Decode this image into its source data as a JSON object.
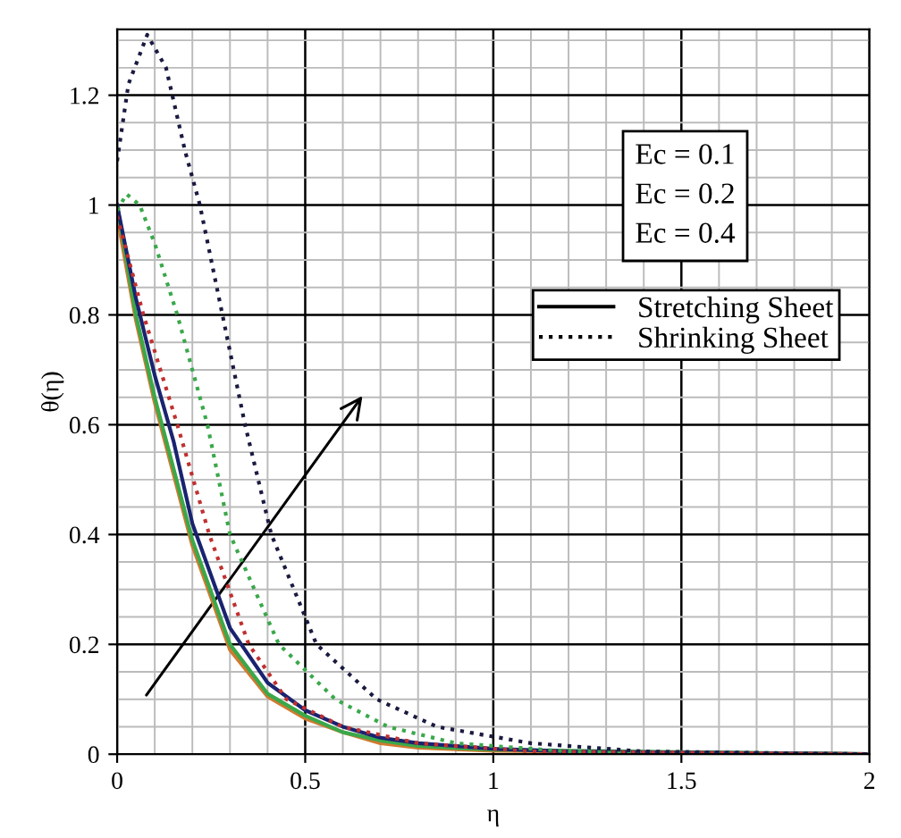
{
  "chart_data": {
    "type": "line",
    "xlabel": "η",
    "ylabel": "θ(η)",
    "xlim": [
      0,
      2
    ],
    "ylim": [
      0,
      1.32
    ],
    "xticks": [
      0,
      0.5,
      1,
      1.5,
      2
    ],
    "yticks": [
      0,
      0.2,
      0.4,
      0.6,
      0.8,
      1,
      1.2
    ],
    "grid": true,
    "series": [
      {
        "color": "#d07a30",
        "line_style": "solid",
        "x": [
          0,
          0.05,
          0.1,
          0.15,
          0.2,
          0.3,
          0.4,
          0.5,
          0.6,
          0.7,
          0.8,
          1,
          2
        ],
        "values": [
          0.98,
          0.79,
          0.64,
          0.51,
          0.38,
          0.19,
          0.105,
          0.065,
          0.04,
          0.02,
          0.012,
          0.006,
          0
        ]
      },
      {
        "color": "#3aa84a",
        "line_style": "solid",
        "x": [
          0,
          0.05,
          0.1,
          0.15,
          0.2,
          0.3,
          0.4,
          0.5,
          0.6,
          0.7,
          0.8,
          1,
          2
        ],
        "values": [
          1,
          0.8,
          0.65,
          0.52,
          0.39,
          0.2,
          0.11,
          0.07,
          0.04,
          0.025,
          0.015,
          0.008,
          0
        ]
      },
      {
        "color": "#1a2370",
        "line_style": "solid",
        "x": [
          0,
          0.05,
          0.1,
          0.15,
          0.2,
          0.3,
          0.4,
          0.5,
          0.6,
          0.7,
          0.8,
          1,
          1.2,
          2
        ],
        "values": [
          1,
          0.83,
          0.69,
          0.57,
          0.42,
          0.23,
          0.13,
          0.08,
          0.05,
          0.03,
          0.02,
          0.01,
          0.005,
          0
        ]
      },
      {
        "color": "#c03030",
        "line_style": "dotted",
        "x": [
          0,
          0.07,
          0.16,
          0.245,
          0.35,
          0.45,
          0.6,
          0.8,
          1.1,
          2
        ],
        "values": [
          0.98,
          0.8,
          0.6,
          0.4,
          0.2,
          0.1,
          0.05,
          0.02,
          0.005,
          0
        ]
      },
      {
        "color": "#3aa84a",
        "line_style": "dotted",
        "x": [
          0,
          0.025,
          0.06,
          0.1,
          0.16,
          0.24,
          0.3,
          0.43,
          0.58,
          0.72,
          0.9,
          1.2,
          2
        ],
        "values": [
          0.99,
          1.02,
          1.0,
          0.93,
          0.8,
          0.6,
          0.4,
          0.2,
          0.1,
          0.05,
          0.02,
          0.005,
          0
        ]
      },
      {
        "color": "#1a1a40",
        "line_style": "dotted",
        "x": [
          0,
          0.03,
          0.08,
          0.13,
          0.18,
          0.22,
          0.28,
          0.34,
          0.41,
          0.53,
          0.69,
          0.85,
          1.1,
          1.4,
          2
        ],
        "values": [
          1.08,
          1.22,
          1.31,
          1.25,
          1.1,
          1.0,
          0.8,
          0.6,
          0.4,
          0.2,
          0.1,
          0.05,
          0.02,
          0.005,
          0
        ]
      }
    ],
    "annotations": [
      "Ec = 0.1",
      "Ec = 0.2",
      "Ec = 0.4",
      "Stretching Sheet",
      "Shrinking Sheet"
    ]
  }
}
